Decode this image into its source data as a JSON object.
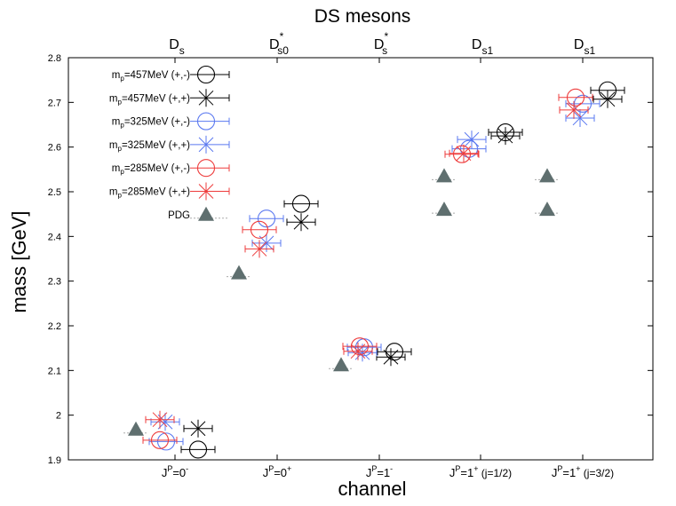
{
  "chart_data": {
    "type": "scatter",
    "title": "DS mesons",
    "xlabel": "channel",
    "ylabel": "mass [GeV]",
    "ylim": [
      1.9,
      2.8
    ],
    "yticks": [
      "1.9",
      "2",
      "2.1",
      "2.2",
      "2.3",
      "2.4",
      "2.5",
      "2.6",
      "2.7",
      "2.8"
    ],
    "grid": false,
    "legend_position": "top-left",
    "channels": [
      {
        "label": "J",
        "sup": "P",
        "rest": "=0",
        "rest_sup": "-",
        "suffix": "",
        "top": "D",
        "top_sup": "",
        "top_sub": "s"
      },
      {
        "label": "J",
        "sup": "P",
        "rest": "=0",
        "rest_sup": "+",
        "suffix": "",
        "top": "D",
        "top_sup": "*",
        "top_sub": "s0"
      },
      {
        "label": "J",
        "sup": "P",
        "rest": "=1",
        "rest_sup": "-",
        "suffix": "",
        "top": "D",
        "top_sup": "*",
        "top_sub": "s"
      },
      {
        "label": "J",
        "sup": "P",
        "rest": "=1",
        "rest_sup": "+",
        "suffix": " (j=1/2)",
        "top": "D",
        "top_sup": "",
        "top_sub": "s1"
      },
      {
        "label": "J",
        "sup": "P",
        "rest": "=1",
        "rest_sup": "+",
        "suffix": " (j=3/2)",
        "top": "D",
        "top_sup": "",
        "top_sub": "s1"
      }
    ],
    "series": [
      {
        "name": "mp=457MeV (+,-)",
        "legend_main": "m",
        "legend_sub": "p",
        "legend_rest": "=457MeV (+,-)",
        "marker": "circle",
        "color": "#000000",
        "points": [
          {
            "ch": 0,
            "y": 1.923
          },
          {
            "ch": 1,
            "y": 2.473
          },
          {
            "ch": 2,
            "y": 2.142
          },
          {
            "ch": 3,
            "y": 2.633
          },
          {
            "ch": 4,
            "y": 2.727
          }
        ]
      },
      {
        "name": "mp=457MeV (+,+)",
        "legend_main": "m",
        "legend_sub": "p",
        "legend_rest": "=457MeV (+,+)",
        "marker": "star",
        "color": "#000000",
        "points": [
          {
            "ch": 0,
            "y": 1.97
          },
          {
            "ch": 1,
            "y": 2.432
          },
          {
            "ch": 2,
            "y": 2.13
          },
          {
            "ch": 3,
            "y": 2.625
          },
          {
            "ch": 4,
            "y": 2.707
          }
        ]
      },
      {
        "name": "mp=325MeV (+,-)",
        "legend_main": "m",
        "legend_sub": "p",
        "legend_rest": "=325MeV (+,-)",
        "marker": "circle",
        "color": "#5a78f0",
        "points": [
          {
            "ch": 0,
            "y": 1.941
          },
          {
            "ch": 1,
            "y": 2.44
          },
          {
            "ch": 2,
            "y": 2.152
          },
          {
            "ch": 3,
            "y": 2.596
          },
          {
            "ch": 4,
            "y": 2.697
          }
        ]
      },
      {
        "name": "mp=325MeV (+,+)",
        "legend_main": "m",
        "legend_sub": "p",
        "legend_rest": "=325MeV (+,+)",
        "marker": "star",
        "color": "#5a78f0",
        "points": [
          {
            "ch": 0,
            "y": 1.985
          },
          {
            "ch": 1,
            "y": 2.385
          },
          {
            "ch": 2,
            "y": 2.14
          },
          {
            "ch": 3,
            "y": 2.617
          },
          {
            "ch": 4,
            "y": 2.665
          }
        ]
      },
      {
        "name": "mp=285MeV (+,-)",
        "legend_main": "m",
        "legend_sub": "p",
        "legend_rest": "=285MeV (+,-)",
        "marker": "circle",
        "color": "#ee3b3b",
        "points": [
          {
            "ch": 0,
            "y": 1.944
          },
          {
            "ch": 1,
            "y": 2.415
          },
          {
            "ch": 2,
            "y": 2.154
          },
          {
            "ch": 3,
            "y": 2.584
          },
          {
            "ch": 4,
            "y": 2.711
          }
        ]
      },
      {
        "name": "mp=285MeV (+,+)",
        "legend_main": "m",
        "legend_sub": "p",
        "legend_rest": "=285MeV (+,+)",
        "marker": "star",
        "color": "#ee3b3b",
        "points": [
          {
            "ch": 0,
            "y": 1.99
          },
          {
            "ch": 1,
            "y": 2.372
          },
          {
            "ch": 2,
            "y": 2.143
          },
          {
            "ch": 3,
            "y": 2.586
          },
          {
            "ch": 4,
            "y": 2.683
          }
        ]
      },
      {
        "name": "PDG",
        "legend_main": "PDG",
        "legend_sub": "",
        "legend_rest": "",
        "marker": "triangle",
        "color": "#5f6f6f",
        "points": [
          {
            "ch": 0,
            "y": 1.968
          },
          {
            "ch": 1,
            "y": 2.318
          },
          {
            "ch": 2,
            "y": 2.112
          },
          {
            "ch": 3,
            "y": 2.46
          },
          {
            "ch": 3,
            "y": 2.535
          },
          {
            "ch": 4,
            "y": 2.46
          },
          {
            "ch": 4,
            "y": 2.535
          }
        ]
      }
    ]
  }
}
